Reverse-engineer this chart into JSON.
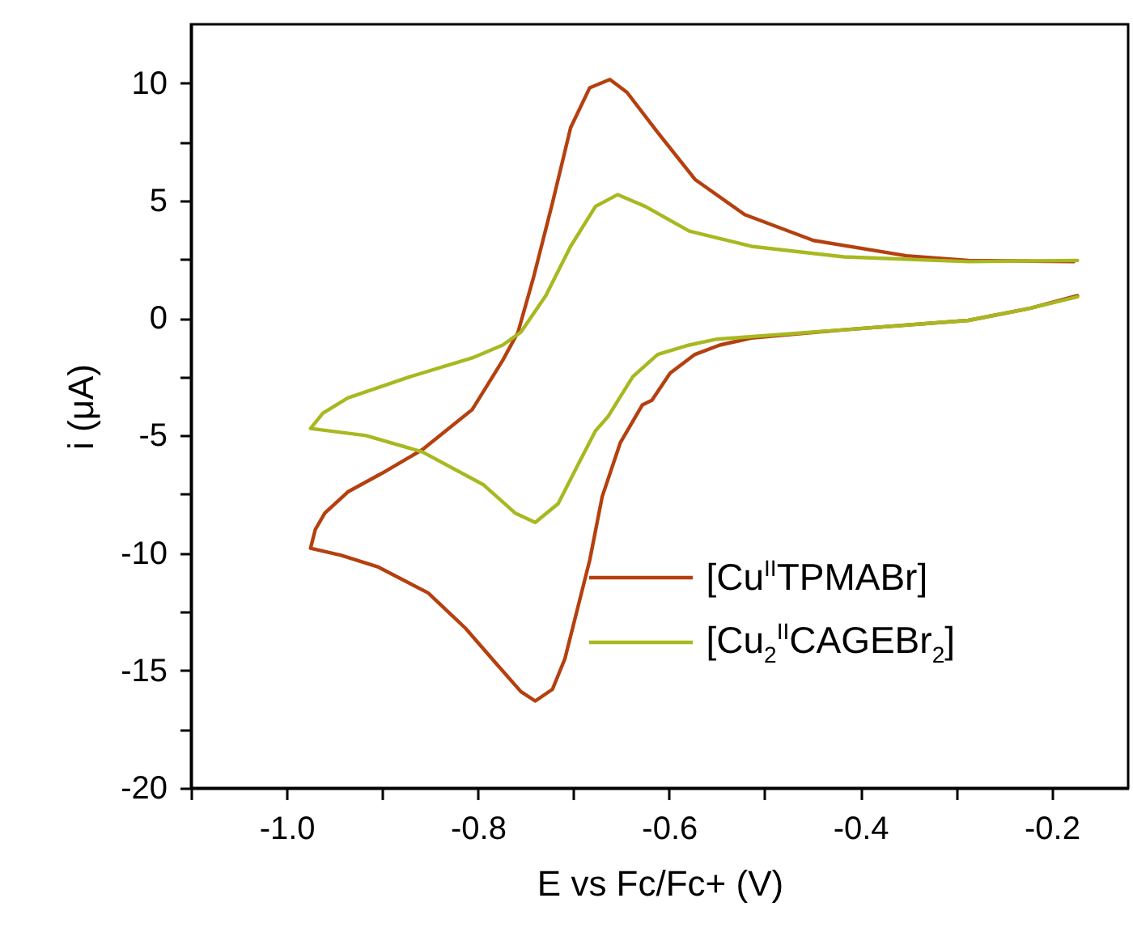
{
  "chart_data": {
    "type": "line",
    "xlabel": "E vs Fc/Fc+ (V)",
    "ylabel": "i (μA)",
    "xlim": [
      -1.1,
      -0.12
    ],
    "ylim": [
      -20,
      12.5
    ],
    "xticks": [
      {
        "value": -1.1,
        "label": null
      },
      {
        "value": -1,
        "label": "-1.0"
      },
      {
        "value": -0.9,
        "label": null
      },
      -0.8,
      {
        "value": -0.7,
        "label": null
      },
      -0.6,
      {
        "value": -0.5,
        "label": null
      },
      -0.4,
      {
        "value": -0.3,
        "label": null
      },
      -0.2
    ],
    "yticks": [
      -20,
      {
        "value": -17.5,
        "label": null
      },
      -15,
      {
        "value": -12.5,
        "label": null
      },
      -10,
      {
        "value": -7.5,
        "label": null
      },
      -5,
      {
        "value": -2.5,
        "label": null
      },
      0,
      {
        "value": 2.5,
        "label": null
      },
      5,
      {
        "value": 7.5,
        "label": null
      },
      10
    ],
    "legend": "bottom right",
    "grid": false,
    "line_style": "solid",
    "marker": "none",
    "series": [
      {
        "name": "[Cu$^{II}$TPMABr]",
        "color": "#b5400f",
        "x": [
          -0.173,
          -0.222,
          -0.287,
          -0.417,
          -0.514,
          -0.547,
          -0.573,
          -0.599,
          -0.618,
          -0.628,
          -0.651,
          -0.67,
          -0.683,
          -0.696,
          -0.709,
          -0.722,
          -0.74,
          -0.755,
          -0.781,
          -0.813,
          -0.852,
          -0.904,
          -0.943,
          -0.975,
          -0.97,
          -0.96,
          -0.936,
          -0.9,
          -0.858,
          -0.806,
          -0.774,
          -0.758,
          -0.742,
          -0.722,
          -0.703,
          -0.683,
          -0.662,
          -0.644,
          -0.612,
          -0.573,
          -0.521,
          -0.449,
          -0.352,
          -0.287,
          -0.177
        ],
        "values": [
          0.95,
          0.42,
          -0.1,
          -0.5,
          -0.85,
          -1.15,
          -1.55,
          -2.35,
          -3.5,
          -3.7,
          -5.3,
          -7.6,
          -10.3,
          -12.4,
          -14.5,
          -15.8,
          -16.3,
          -15.9,
          -14.7,
          -13.2,
          -11.7,
          -10.6,
          -10.1,
          -9.8,
          -9,
          -8.3,
          -7.4,
          -6.6,
          -5.6,
          -3.9,
          -1.8,
          -0.6,
          1.7,
          4.9,
          8.1,
          9.8,
          10.15,
          9.6,
          7.9,
          5.9,
          4.4,
          3.3,
          2.65,
          2.45,
          2.4
        ]
      },
      {
        "name": "[Cu$_{2}$$^{II}$CAGEBr$_{2}$]",
        "color": "#a8b820",
        "x": [
          -0.173,
          -0.222,
          -0.287,
          -0.417,
          -0.55,
          -0.579,
          -0.612,
          -0.638,
          -0.664,
          -0.677,
          -0.696,
          -0.716,
          -0.74,
          -0.761,
          -0.794,
          -0.858,
          -0.917,
          -0.975,
          -0.962,
          -0.936,
          -0.871,
          -0.806,
          -0.774,
          -0.755,
          -0.729,
          -0.703,
          -0.677,
          -0.654,
          -0.625,
          -0.579,
          -0.514,
          -0.417,
          -0.287,
          -0.173
        ],
        "values": [
          0.9,
          0.42,
          -0.1,
          -0.5,
          -0.9,
          -1.15,
          -1.55,
          -2.5,
          -4.2,
          -4.8,
          -6.3,
          -7.9,
          -8.7,
          -8.3,
          -7.1,
          -5.7,
          -5,
          -4.7,
          -4.05,
          -3.4,
          -2.5,
          -1.7,
          -1.15,
          -0.6,
          0.95,
          3.05,
          4.75,
          5.25,
          4.75,
          3.7,
          3.05,
          2.6,
          2.4,
          2.45
        ]
      }
    ]
  }
}
